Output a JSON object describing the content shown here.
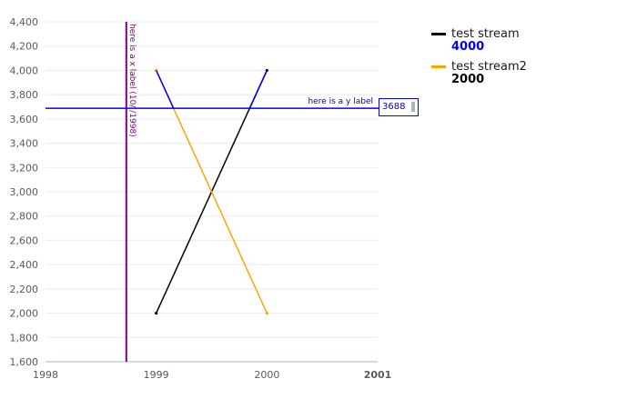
{
  "chart_data": {
    "type": "line",
    "title": "",
    "xlabel": "",
    "ylabel": "",
    "xlim": [
      1998,
      2001
    ],
    "ylim": [
      1600,
      4400
    ],
    "x_ticks": [
      "1998",
      "1999",
      "2000",
      "2001"
    ],
    "y_ticks": [
      1600,
      1800,
      2000,
      2200,
      2400,
      2600,
      2800,
      3000,
      3200,
      3400,
      3600,
      3800,
      4000,
      4200,
      4400
    ],
    "y_tick_labels": [
      "1,600",
      "1,800",
      "2,000",
      "2,200",
      "2,400",
      "2,600",
      "2,800",
      "3,000",
      "3,200",
      "3,400",
      "3,600",
      "3,800",
      "4,000",
      "4,200",
      "4,400"
    ],
    "grid": "horizontal",
    "legend_position": "right",
    "series": [
      {
        "name": "test stream",
        "color": "#000000",
        "x": [
          1999,
          2000
        ],
        "values": [
          2000,
          4000
        ],
        "legend_value": "4000",
        "legend_value_color": "#0000ff"
      },
      {
        "name": "test stream2",
        "color": "#ffa500",
        "x": [
          1999,
          2000
        ],
        "values": [
          4000,
          2000
        ],
        "legend_value": "2000",
        "legend_value_color": "#000000"
      }
    ],
    "markers": {
      "x_marker": {
        "label": "here is a x label (10/ /1998)",
        "x": 1998.73,
        "color": "#800080"
      },
      "y_marker": {
        "label": "here is a y label",
        "y": 3688,
        "value_text": "3688",
        "color": "#0000ff"
      }
    }
  }
}
